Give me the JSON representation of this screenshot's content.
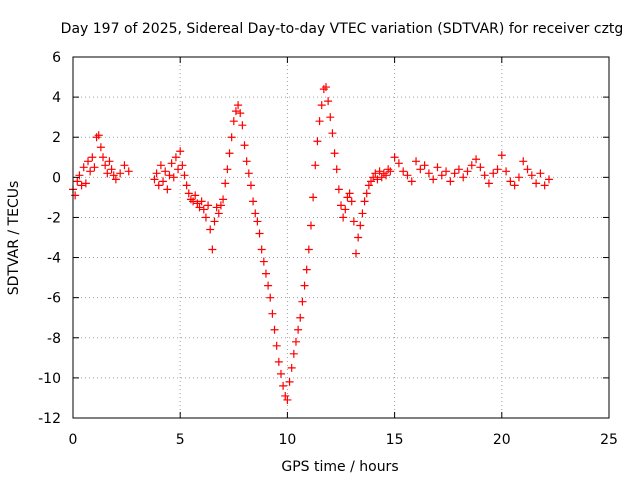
{
  "chart_data": {
    "type": "scatter",
    "title": "Day 197 of 2025, Sidereal Day-to-day VTEC variation (SDTVAR) for receiver cztg",
    "xlabel": "GPS time / hours",
    "ylabel": "SDTVAR / TECUs",
    "xlim": [
      0,
      25
    ],
    "ylim": [
      -12,
      6
    ],
    "xticks": [
      0,
      5,
      10,
      15,
      20,
      25
    ],
    "yticks": [
      -12,
      -10,
      -8,
      -6,
      -4,
      -2,
      0,
      2,
      4,
      6
    ],
    "grid": true,
    "marker": "+",
    "color": "#ff0000",
    "series": [
      {
        "name": "SDTVAR",
        "x": [
          0.0,
          0.1,
          0.2,
          0.3,
          0.4,
          0.5,
          0.6,
          0.7,
          0.8,
          0.9,
          1.0,
          1.1,
          1.2,
          1.3,
          1.4,
          1.5,
          1.6,
          1.7,
          1.8,
          1.9,
          2.0,
          2.2,
          2.4,
          2.6,
          3.8,
          3.9,
          4.0,
          4.1,
          4.2,
          4.3,
          4.4,
          4.5,
          4.6,
          4.7,
          4.8,
          4.9,
          5.0,
          5.1,
          5.2,
          5.3,
          5.4,
          5.5,
          5.6,
          5.7,
          5.8,
          5.9,
          6.0,
          6.1,
          6.2,
          6.3,
          6.4,
          6.5,
          6.6,
          6.7,
          6.8,
          6.9,
          7.0,
          7.1,
          7.2,
          7.3,
          7.4,
          7.5,
          7.6,
          7.7,
          7.8,
          7.9,
          8.0,
          8.1,
          8.2,
          8.3,
          8.4,
          8.5,
          8.6,
          8.7,
          8.8,
          8.9,
          9.0,
          9.1,
          9.2,
          9.3,
          9.4,
          9.5,
          9.6,
          9.7,
          9.8,
          9.9,
          10.0,
          10.1,
          10.2,
          10.3,
          10.4,
          10.5,
          10.6,
          10.7,
          10.8,
          10.9,
          11.0,
          11.1,
          11.2,
          11.3,
          11.4,
          11.5,
          11.6,
          11.7,
          11.8,
          11.9,
          12.0,
          12.1,
          12.2,
          12.3,
          12.4,
          12.5,
          12.6,
          12.7,
          12.8,
          12.9,
          13.0,
          13.1,
          13.2,
          13.3,
          13.4,
          13.5,
          13.6,
          13.7,
          13.8,
          13.9,
          14.0,
          14.1,
          14.2,
          14.3,
          14.4,
          14.5,
          14.6,
          14.7,
          14.8,
          15.0,
          15.2,
          15.4,
          15.6,
          15.8,
          16.0,
          16.2,
          16.4,
          16.6,
          16.8,
          17.0,
          17.2,
          17.4,
          17.6,
          17.8,
          18.0,
          18.2,
          18.4,
          18.6,
          18.8,
          19.0,
          19.2,
          19.4,
          19.6,
          19.8,
          20.0,
          20.2,
          20.4,
          20.6,
          20.8,
          21.0,
          21.2,
          21.4,
          21.6,
          21.8,
          22.0,
          22.2
        ],
        "y": [
          -0.6,
          -0.9,
          -0.2,
          0.1,
          -0.4,
          0.5,
          -0.3,
          0.8,
          0.3,
          1.0,
          0.5,
          2.0,
          2.1,
          1.5,
          1.0,
          0.6,
          0.2,
          0.8,
          0.4,
          0.1,
          -0.1,
          0.2,
          0.6,
          0.3,
          -0.1,
          0.2,
          -0.4,
          0.6,
          -0.2,
          0.3,
          -0.6,
          0.1,
          0.7,
          0.0,
          1.0,
          0.4,
          1.3,
          0.6,
          0.1,
          -0.4,
          -0.8,
          -1.1,
          -1.2,
          -0.9,
          -1.3,
          -1.5,
          -1.2,
          -1.6,
          -2.0,
          -1.4,
          -2.6,
          -3.6,
          -2.2,
          -1.5,
          -1.8,
          -1.4,
          -1.1,
          -0.3,
          0.4,
          1.2,
          2.0,
          2.8,
          3.3,
          3.6,
          3.2,
          2.6,
          1.6,
          0.8,
          0.2,
          -0.4,
          -1.2,
          -1.8,
          -2.2,
          -2.8,
          -3.6,
          -4.2,
          -4.8,
          -5.4,
          -6.0,
          -6.8,
          -7.6,
          -8.4,
          -9.2,
          -9.8,
          -10.4,
          -10.9,
          -11.1,
          -10.2,
          -9.5,
          -8.8,
          -8.2,
          -7.6,
          -7.0,
          -6.2,
          -5.4,
          -4.6,
          -3.6,
          -2.4,
          -1.0,
          0.6,
          1.8,
          2.8,
          3.6,
          4.4,
          4.5,
          3.8,
          3.0,
          2.2,
          1.2,
          0.4,
          -0.6,
          -1.4,
          -2.0,
          -1.6,
          -1.0,
          -0.8,
          -1.2,
          -2.2,
          -3.8,
          -3.0,
          -2.4,
          -1.8,
          -1.2,
          -0.8,
          -0.4,
          -0.2,
          0.0,
          0.2,
          -0.1,
          0.3,
          0.0,
          0.2,
          0.1,
          0.4,
          0.3,
          1.0,
          0.7,
          0.3,
          0.1,
          -0.2,
          0.8,
          0.4,
          0.6,
          0.2,
          -0.1,
          0.5,
          0.1,
          0.3,
          -0.2,
          0.2,
          0.4,
          0.0,
          0.3,
          0.6,
          0.9,
          0.5,
          0.1,
          -0.3,
          0.2,
          0.4,
          1.1,
          0.3,
          -0.2,
          -0.4,
          0.0,
          0.8,
          0.4,
          0.1,
          -0.3,
          0.2,
          -0.4,
          -0.1
        ]
      }
    ]
  }
}
